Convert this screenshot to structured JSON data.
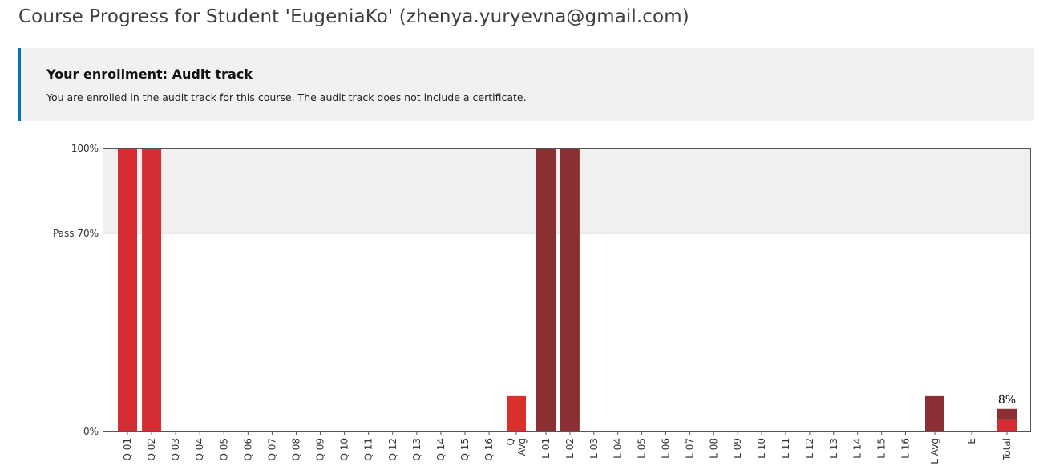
{
  "page": {
    "title": "Course Progress for Student 'EugeniaKo' (zhenya.yuryevna@gmail.com)"
  },
  "enrollment": {
    "heading": "Your enrollment: Audit track",
    "message": "You are enrolled in the audit track for this course. The audit track does not include a certificate."
  },
  "chart_data": {
    "type": "bar",
    "ylim": [
      0,
      100
    ],
    "y_ticks": [
      "100%",
      "Pass 70%",
      "0%"
    ],
    "pass_threshold": 70,
    "grid": false,
    "colors": {
      "quiz": "#d62d35",
      "quiz_avg": "#d9302d",
      "lab": "#8b2f33",
      "total_quiz_part": "#d62d35",
      "total_lab_part": "#8b2f33",
      "pass_zone": "#ebebeb"
    },
    "categories": [
      "Q 01",
      "Q 02",
      "Q 03",
      "Q 04",
      "Q 05",
      "Q 06",
      "Q 07",
      "Q 08",
      "Q 09",
      "Q 10",
      "Q 11",
      "Q 12",
      "Q 13",
      "Q 14",
      "Q 15",
      "Q 16",
      "Q Avg",
      "L 01",
      "L 02",
      "L 03",
      "L 04",
      "L 05",
      "L 06",
      "L 07",
      "L 08",
      "L 09",
      "L 10",
      "L 11",
      "L 12",
      "L 13",
      "L 14",
      "L 15",
      "L 16",
      "L Avg",
      "E",
      "Total"
    ],
    "series": [
      {
        "group": "quiz",
        "values": [
          100,
          100,
          0,
          0,
          0,
          0,
          0,
          0,
          0,
          0,
          0,
          0,
          0,
          0,
          0,
          0,
          null,
          null,
          null,
          null,
          null,
          null,
          null,
          null,
          null,
          null,
          null,
          null,
          null,
          null,
          null,
          null,
          null,
          null,
          null,
          null
        ]
      },
      {
        "group": "quiz_avg",
        "values": [
          null,
          null,
          null,
          null,
          null,
          null,
          null,
          null,
          null,
          null,
          null,
          null,
          null,
          null,
          null,
          null,
          12.5,
          null,
          null,
          null,
          null,
          null,
          null,
          null,
          null,
          null,
          null,
          null,
          null,
          null,
          null,
          null,
          null,
          null,
          null,
          null
        ]
      },
      {
        "group": "lab",
        "values": [
          null,
          null,
          null,
          null,
          null,
          null,
          null,
          null,
          null,
          null,
          null,
          null,
          null,
          null,
          null,
          null,
          null,
          100,
          100,
          0,
          0,
          0,
          0,
          0,
          0,
          0,
          0,
          0,
          0,
          0,
          0,
          0,
          0,
          12.5,
          null,
          null
        ]
      },
      {
        "group": "total",
        "stack": [
          4,
          4
        ],
        "values": [
          null,
          null,
          null,
          null,
          null,
          null,
          null,
          null,
          null,
          null,
          null,
          null,
          null,
          null,
          null,
          null,
          null,
          null,
          null,
          null,
          null,
          null,
          null,
          null,
          null,
          null,
          null,
          null,
          null,
          null,
          null,
          null,
          null,
          null,
          null,
          8
        ]
      }
    ],
    "annotations": [
      {
        "category": "Total",
        "text": "8%"
      }
    ]
  }
}
